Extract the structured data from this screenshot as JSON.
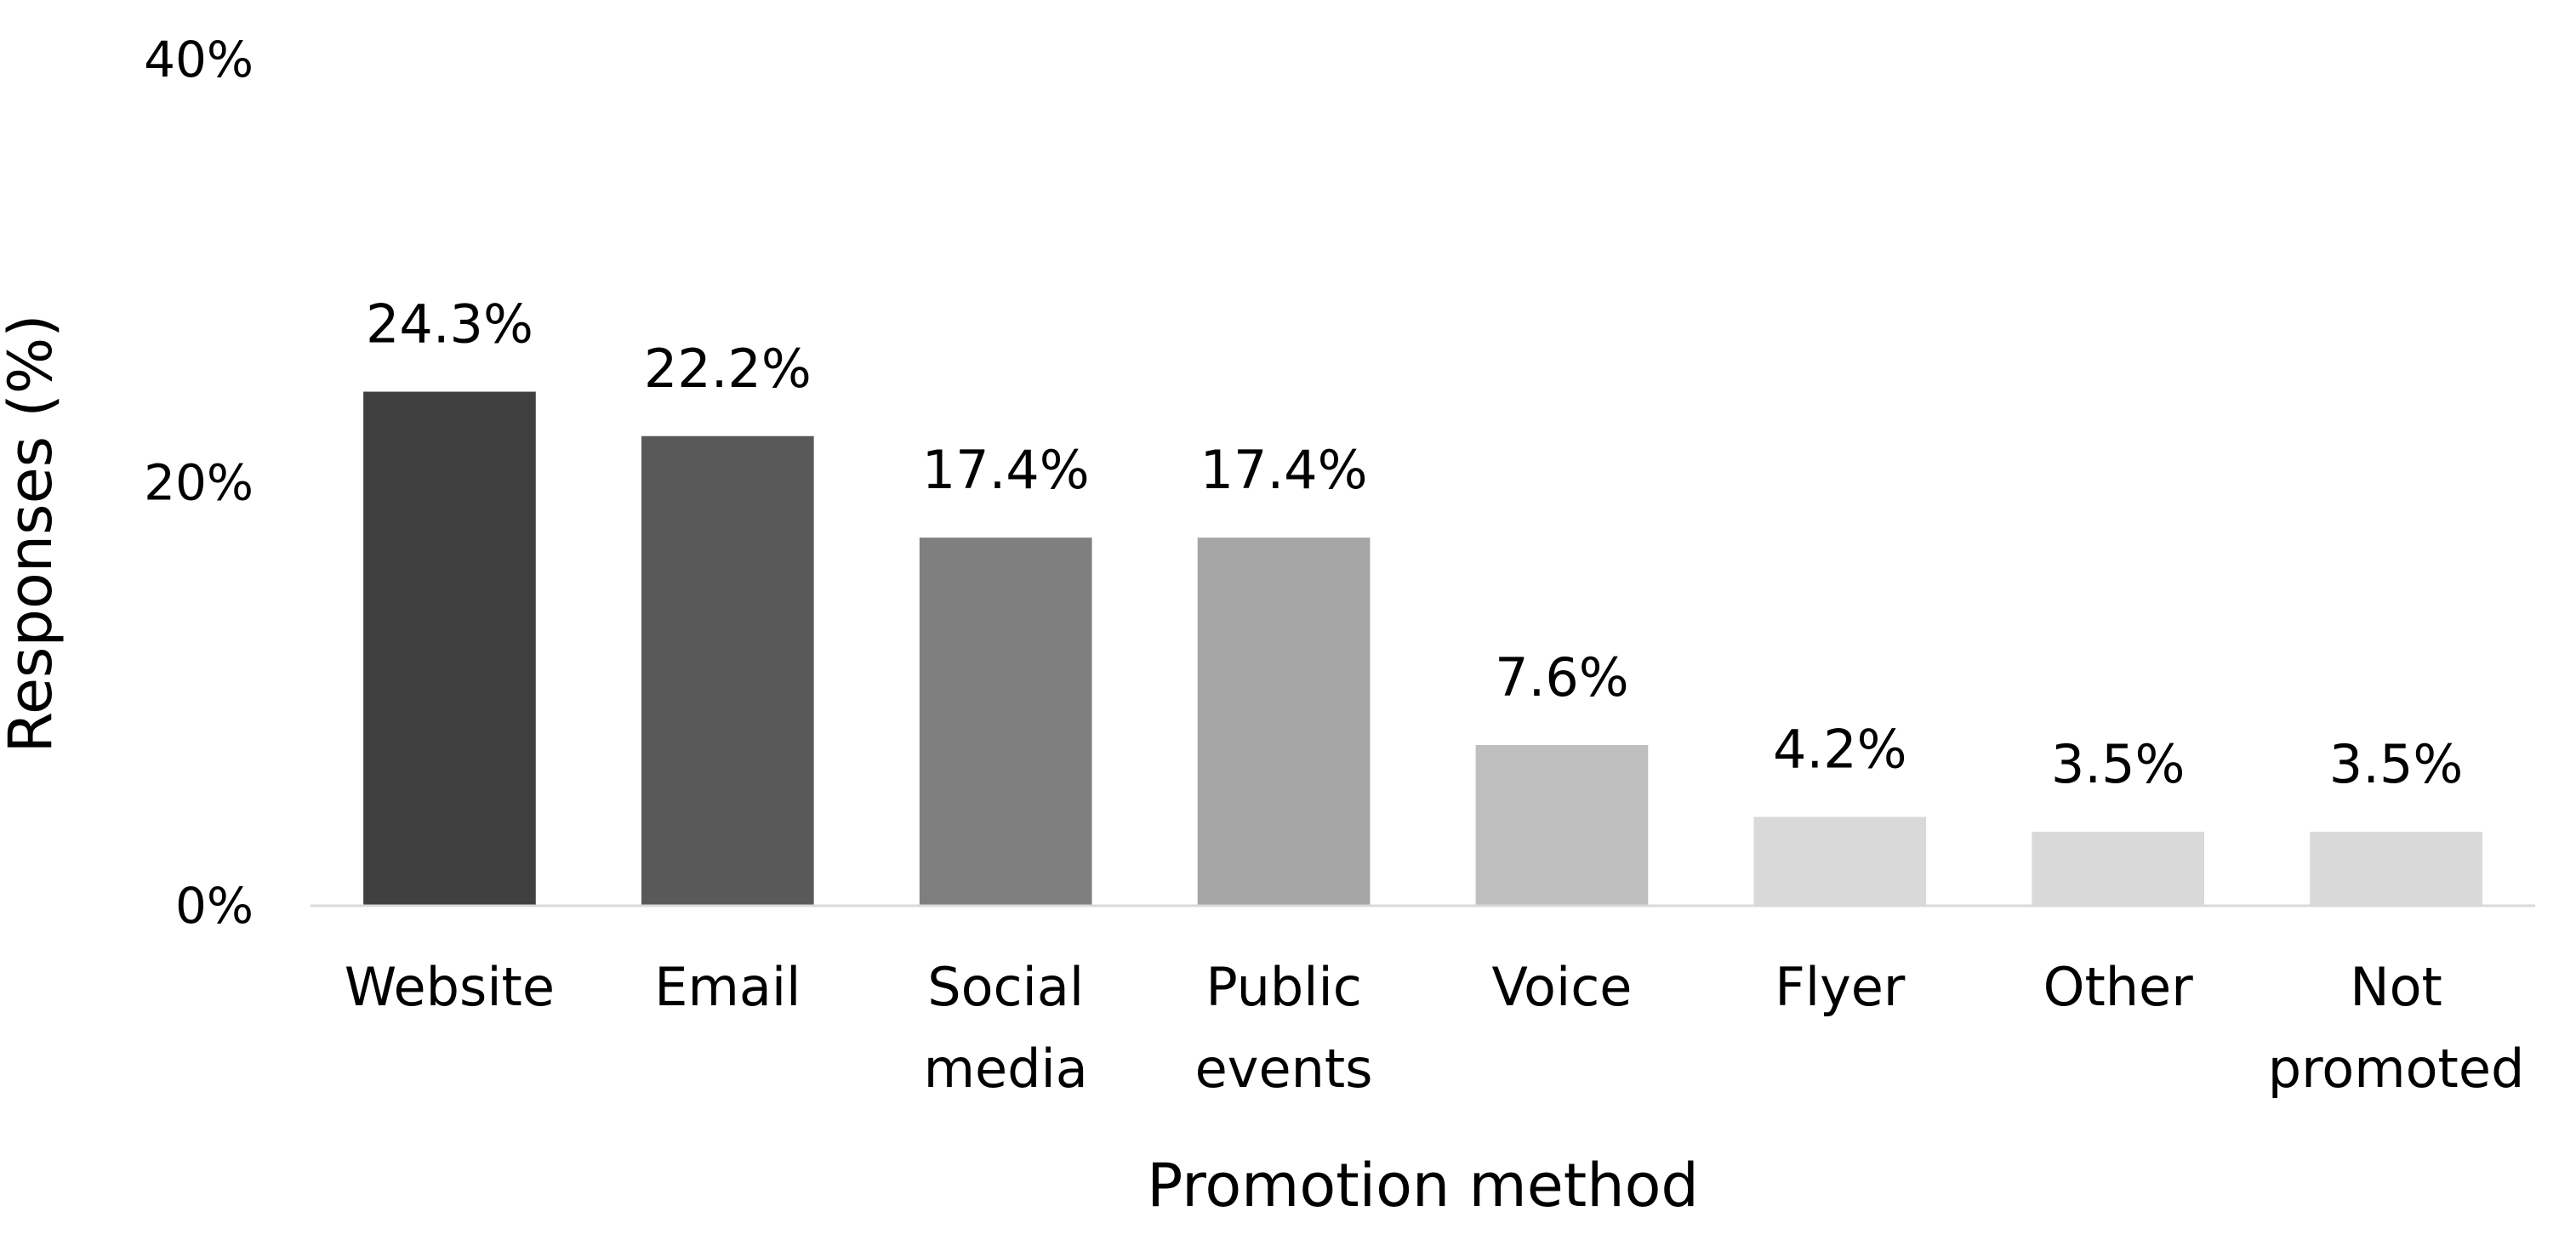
{
  "chart_data": {
    "type": "bar",
    "title": "",
    "xlabel": "Promotion method",
    "ylabel": "Responses (%)",
    "ylim": [
      0,
      40
    ],
    "y_ticks": [
      "0%",
      "20%",
      "40%"
    ],
    "grid": false,
    "legend": "none",
    "categories": [
      "Website",
      "Email",
      "Social media",
      "Public events",
      "Voice",
      "Flyer",
      "Other",
      "Not promoted"
    ],
    "category_lines": [
      [
        "Website"
      ],
      [
        "Email"
      ],
      [
        "Social",
        "media"
      ],
      [
        "Public",
        "events"
      ],
      [
        "Voice"
      ],
      [
        "Flyer"
      ],
      [
        "Other"
      ],
      [
        "Not",
        "promoted"
      ]
    ],
    "values": [
      24.3,
      22.2,
      17.4,
      17.4,
      7.6,
      4.2,
      3.5,
      3.5
    ],
    "data_labels": [
      "24.3%",
      "22.2%",
      "17.4%",
      "17.4%",
      "7.6%",
      "4.2%",
      "3.5%",
      "3.5%"
    ],
    "colors": [
      "#404040",
      "#595959",
      "#7f7f7f",
      "#a5a5a5",
      "#bfbfbf",
      "#d9d9d9",
      "#d9d9d9",
      "#d9d9d9"
    ],
    "axis_color": "#d9d9d9"
  }
}
